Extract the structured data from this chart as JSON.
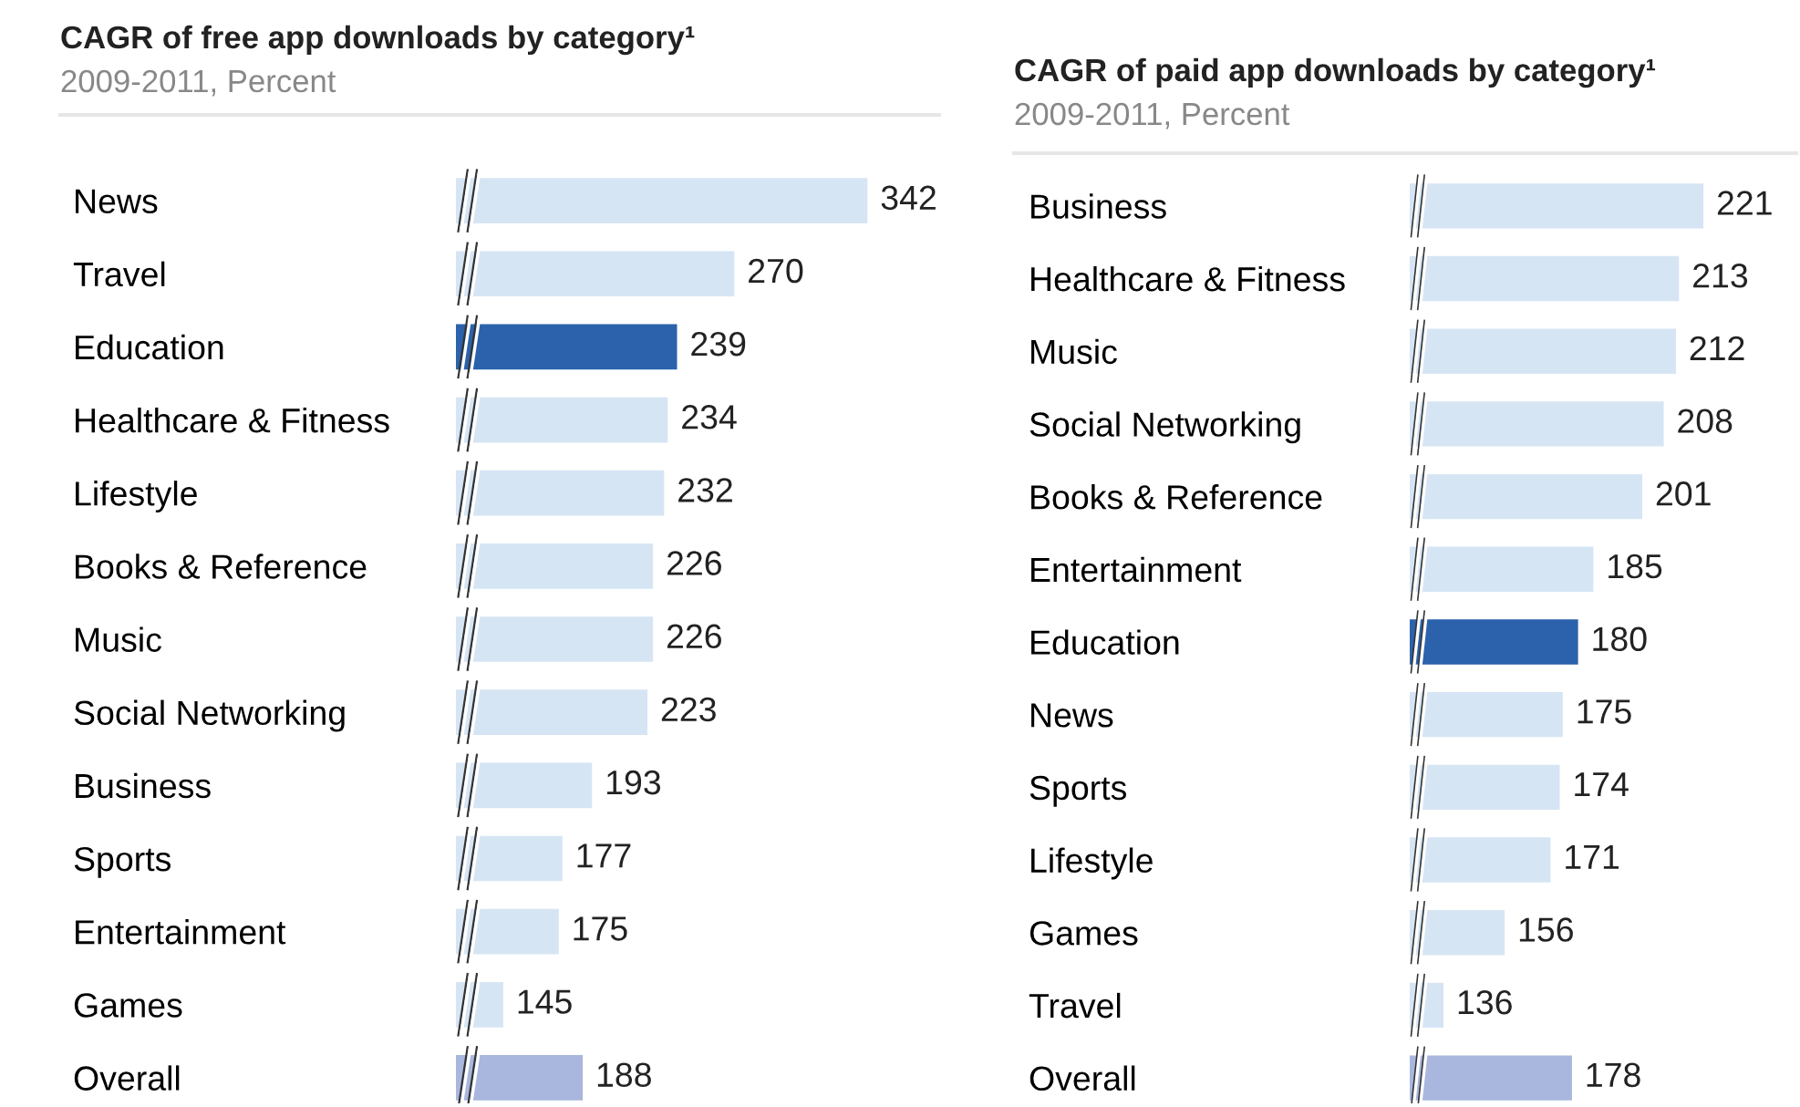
{
  "chart_data": [
    {
      "type": "bar",
      "orientation": "horizontal",
      "title": "CAGR of free app downloads by category¹",
      "subtitle": "2009-2011, Percent",
      "categories": [
        "News",
        "Travel",
        "Education",
        "Healthcare & Fitness",
        "Lifestyle",
        "Books & Reference",
        "Music",
        "Social Networking",
        "Business",
        "Sports",
        "Entertainment",
        "Games",
        "Overall"
      ],
      "values": [
        342,
        270,
        239,
        234,
        232,
        226,
        226,
        223,
        193,
        177,
        175,
        145,
        188
      ],
      "colors": [
        "#d6e5f4",
        "#d6e5f4",
        "#2b62ab",
        "#d6e5f4",
        "#d6e5f4",
        "#d6e5f4",
        "#d6e5f4",
        "#d6e5f4",
        "#d6e5f4",
        "#d6e5f4",
        "#d6e5f4",
        "#d6e5f4",
        "#a9b7de"
      ],
      "data_labels": true,
      "tick_labels": "y"
    },
    {
      "type": "bar",
      "orientation": "horizontal",
      "title": "CAGR of paid app downloads by category¹",
      "subtitle": "2009-2011, Percent",
      "categories": [
        "Business",
        "Healthcare & Fitness",
        "Music",
        "Social Networking",
        "Books & Reference",
        "Entertainment",
        "Education",
        "News",
        "Sports",
        "Lifestyle",
        "Games",
        "Travel",
        "Overall"
      ],
      "values": [
        221,
        213,
        212,
        208,
        201,
        185,
        180,
        175,
        174,
        171,
        156,
        136,
        178
      ],
      "colors": [
        "#d6e5f4",
        "#d6e5f4",
        "#d6e5f4",
        "#d6e5f4",
        "#d6e5f4",
        "#d6e5f4",
        "#2b62ab",
        "#d6e5f4",
        "#d6e5f4",
        "#d6e5f4",
        "#d6e5f4",
        "#d6e5f4",
        "#a9b7de"
      ],
      "data_labels": true,
      "tick_labels": "y"
    }
  ]
}
